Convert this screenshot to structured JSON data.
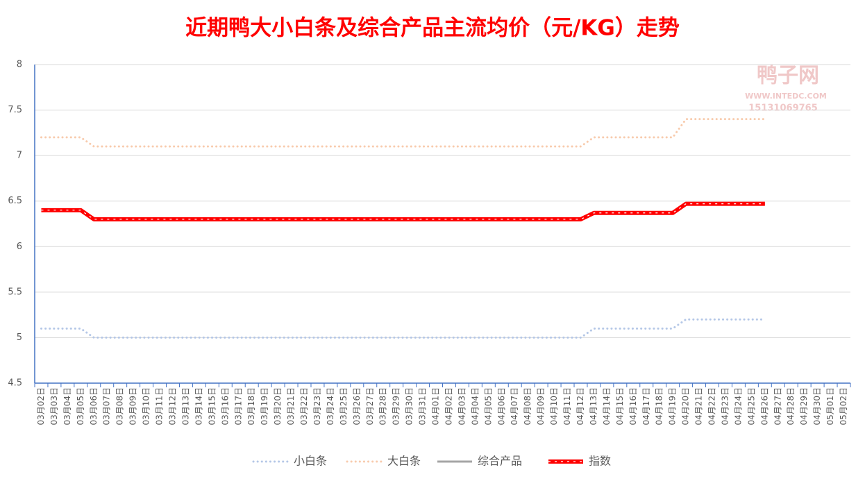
{
  "chart_data": {
    "type": "line",
    "title": "近期鸭大小白条及综合产品主流均价（元/KG）走势",
    "watermark": [
      "鸭子网",
      "WWW.INTEDC.COM",
      "15131069765"
    ],
    "categories": [
      "03月02日",
      "03月03日",
      "03月04日",
      "03月05日",
      "03月06日",
      "03月07日",
      "03月08日",
      "03月09日",
      "03月10日",
      "03月11日",
      "03月12日",
      "03月13日",
      "03月14日",
      "03月15日",
      "03月16日",
      "03月17日",
      "03月18日",
      "03月19日",
      "03月20日",
      "03月21日",
      "03月22日",
      "03月23日",
      "03月24日",
      "03月25日",
      "03月26日",
      "03月27日",
      "03月28日",
      "03月29日",
      "03月30日",
      "03月31日",
      "04月01日",
      "04月02日",
      "04月03日",
      "04月04日",
      "04月05日",
      "04月06日",
      "04月07日",
      "04月08日",
      "04月09日",
      "04月10日",
      "04月11日",
      "04月12日",
      "04月13日",
      "04月14日",
      "04月15日",
      "04月16日",
      "04月17日",
      "04月18日",
      "04月19日",
      "04月20日",
      "04月21日",
      "04月22日",
      "04月23日",
      "04月24日",
      "04月25日",
      "04月26日",
      "04月27日",
      "04月28日",
      "04月29日",
      "04月30日",
      "05月01日",
      "05月02日"
    ],
    "series": [
      {
        "name": "小白条",
        "color": "#b4c7e7",
        "style": "dotted",
        "values": [
          5.1,
          5.1,
          5.1,
          5.1,
          5,
          5,
          5,
          5,
          5,
          5,
          5,
          5,
          5,
          5,
          5,
          5,
          5,
          5,
          5,
          5,
          5,
          5,
          5,
          5,
          5,
          5,
          5,
          5,
          5,
          5,
          5,
          5,
          5,
          5,
          5,
          5,
          5,
          5,
          5,
          5,
          5,
          5,
          5.1,
          5.1,
          5.1,
          5.1,
          5.1,
          5.1,
          5.1,
          5.2,
          5.2,
          5.2,
          5.2,
          5.2,
          5.2,
          5.2,
          null,
          null,
          null,
          null,
          null,
          null
        ]
      },
      {
        "name": "大白条",
        "color": "#f8cbad",
        "style": "dotted",
        "values": [
          7.2,
          7.2,
          7.2,
          7.2,
          7.1,
          7.1,
          7.1,
          7.1,
          7.1,
          7.1,
          7.1,
          7.1,
          7.1,
          7.1,
          7.1,
          7.1,
          7.1,
          7.1,
          7.1,
          7.1,
          7.1,
          7.1,
          7.1,
          7.1,
          7.1,
          7.1,
          7.1,
          7.1,
          7.1,
          7.1,
          7.1,
          7.1,
          7.1,
          7.1,
          7.1,
          7.1,
          7.1,
          7.1,
          7.1,
          7.1,
          7.1,
          7.1,
          7.2,
          7.2,
          7.2,
          7.2,
          7.2,
          7.2,
          7.2,
          7.4,
          7.4,
          7.4,
          7.4,
          7.4,
          7.4,
          7.4,
          null,
          null,
          null,
          null,
          null,
          null
        ]
      },
      {
        "name": "综合产品",
        "color": "#a5a5a5",
        "style": "solid",
        "values": [
          6.4,
          6.4,
          6.4,
          6.4,
          6.3,
          6.3,
          6.3,
          6.3,
          6.3,
          6.3,
          6.3,
          6.3,
          6.3,
          6.3,
          6.3,
          6.3,
          6.3,
          6.3,
          6.3,
          6.3,
          6.3,
          6.3,
          6.3,
          6.3,
          6.3,
          6.3,
          6.3,
          6.3,
          6.3,
          6.3,
          6.3,
          6.3,
          6.3,
          6.3,
          6.3,
          6.3,
          6.3,
          6.3,
          6.3,
          6.3,
          6.3,
          6.3,
          6.37,
          6.37,
          6.37,
          6.37,
          6.37,
          6.37,
          6.37,
          6.47,
          6.47,
          6.47,
          6.47,
          6.47,
          6.47,
          6.47,
          null,
          null,
          null,
          null,
          null,
          null
        ]
      },
      {
        "name": "指数",
        "color": "#ff0000",
        "style": "thick",
        "values": [
          6.4,
          6.4,
          6.4,
          6.4,
          6.3,
          6.3,
          6.3,
          6.3,
          6.3,
          6.3,
          6.3,
          6.3,
          6.3,
          6.3,
          6.3,
          6.3,
          6.3,
          6.3,
          6.3,
          6.3,
          6.3,
          6.3,
          6.3,
          6.3,
          6.3,
          6.3,
          6.3,
          6.3,
          6.3,
          6.3,
          6.3,
          6.3,
          6.3,
          6.3,
          6.3,
          6.3,
          6.3,
          6.3,
          6.3,
          6.3,
          6.3,
          6.3,
          6.37,
          6.37,
          6.37,
          6.37,
          6.37,
          6.37,
          6.37,
          6.47,
          6.47,
          6.47,
          6.47,
          6.47,
          6.47,
          6.47,
          null,
          null,
          null,
          null,
          null,
          null
        ]
      }
    ],
    "ylim": [
      4.5,
      8
    ],
    "yticks": [
      4.5,
      5,
      5.5,
      6,
      6.5,
      7,
      7.5,
      8
    ],
    "grid": true,
    "legend": "bottom"
  }
}
